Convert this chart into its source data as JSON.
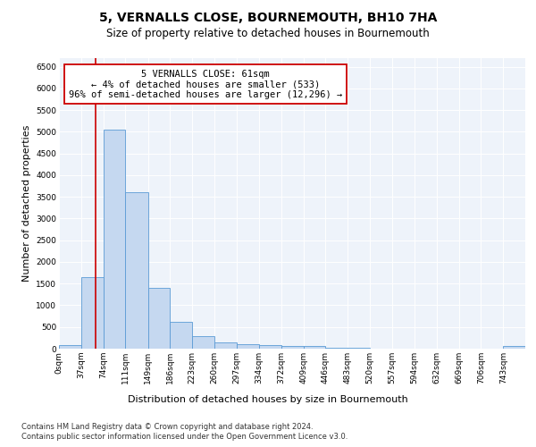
{
  "title": "5, VERNALLS CLOSE, BOURNEMOUTH, BH10 7HA",
  "subtitle": "Size of property relative to detached houses in Bournemouth",
  "xlabel": "Distribution of detached houses by size in Bournemouth",
  "ylabel": "Number of detached properties",
  "footer_line1": "Contains HM Land Registry data © Crown copyright and database right 2024.",
  "footer_line2": "Contains public sector information licensed under the Open Government Licence v3.0.",
  "bar_color": "#c5d8f0",
  "bar_edge_color": "#5b9bd5",
  "annotation_box_edge": "#cc0000",
  "vline_color": "#cc0000",
  "annotation_text_line1": "5 VERNALLS CLOSE: 61sqm",
  "annotation_text_line2": "← 4% of detached houses are smaller (533)",
  "annotation_text_line3": "96% of semi-detached houses are larger (12,296) →",
  "vline_x": 61,
  "bin_edges": [
    0,
    37,
    74,
    111,
    149,
    186,
    223,
    260,
    297,
    334,
    372,
    409,
    446,
    483,
    520,
    557,
    594,
    632,
    669,
    706,
    743,
    780
  ],
  "categories": [
    "0sqm",
    "37sqm",
    "74sqm",
    "111sqm",
    "149sqm",
    "186sqm",
    "223sqm",
    "260sqm",
    "297sqm",
    "334sqm",
    "372sqm",
    "409sqm",
    "446sqm",
    "483sqm",
    "520sqm",
    "557sqm",
    "594sqm",
    "632sqm",
    "669sqm",
    "706sqm",
    "743sqm"
  ],
  "bar_heights": [
    75,
    1650,
    5050,
    3600,
    1400,
    620,
    290,
    145,
    105,
    80,
    60,
    55,
    30,
    20,
    10,
    8,
    5,
    4,
    3,
    2,
    60
  ],
  "ylim_max": 6700,
  "yticks": [
    0,
    500,
    1000,
    1500,
    2000,
    2500,
    3000,
    3500,
    4000,
    4500,
    5000,
    5500,
    6000,
    6500
  ],
  "title_fontsize": 10,
  "subtitle_fontsize": 8.5,
  "ylabel_fontsize": 8,
  "xlabel_fontsize": 8,
  "tick_fontsize": 6.5,
  "footer_fontsize": 6,
  "annotation_fontsize": 7.5,
  "background_color": "#eef3fa",
  "grid_color": "#ffffff"
}
